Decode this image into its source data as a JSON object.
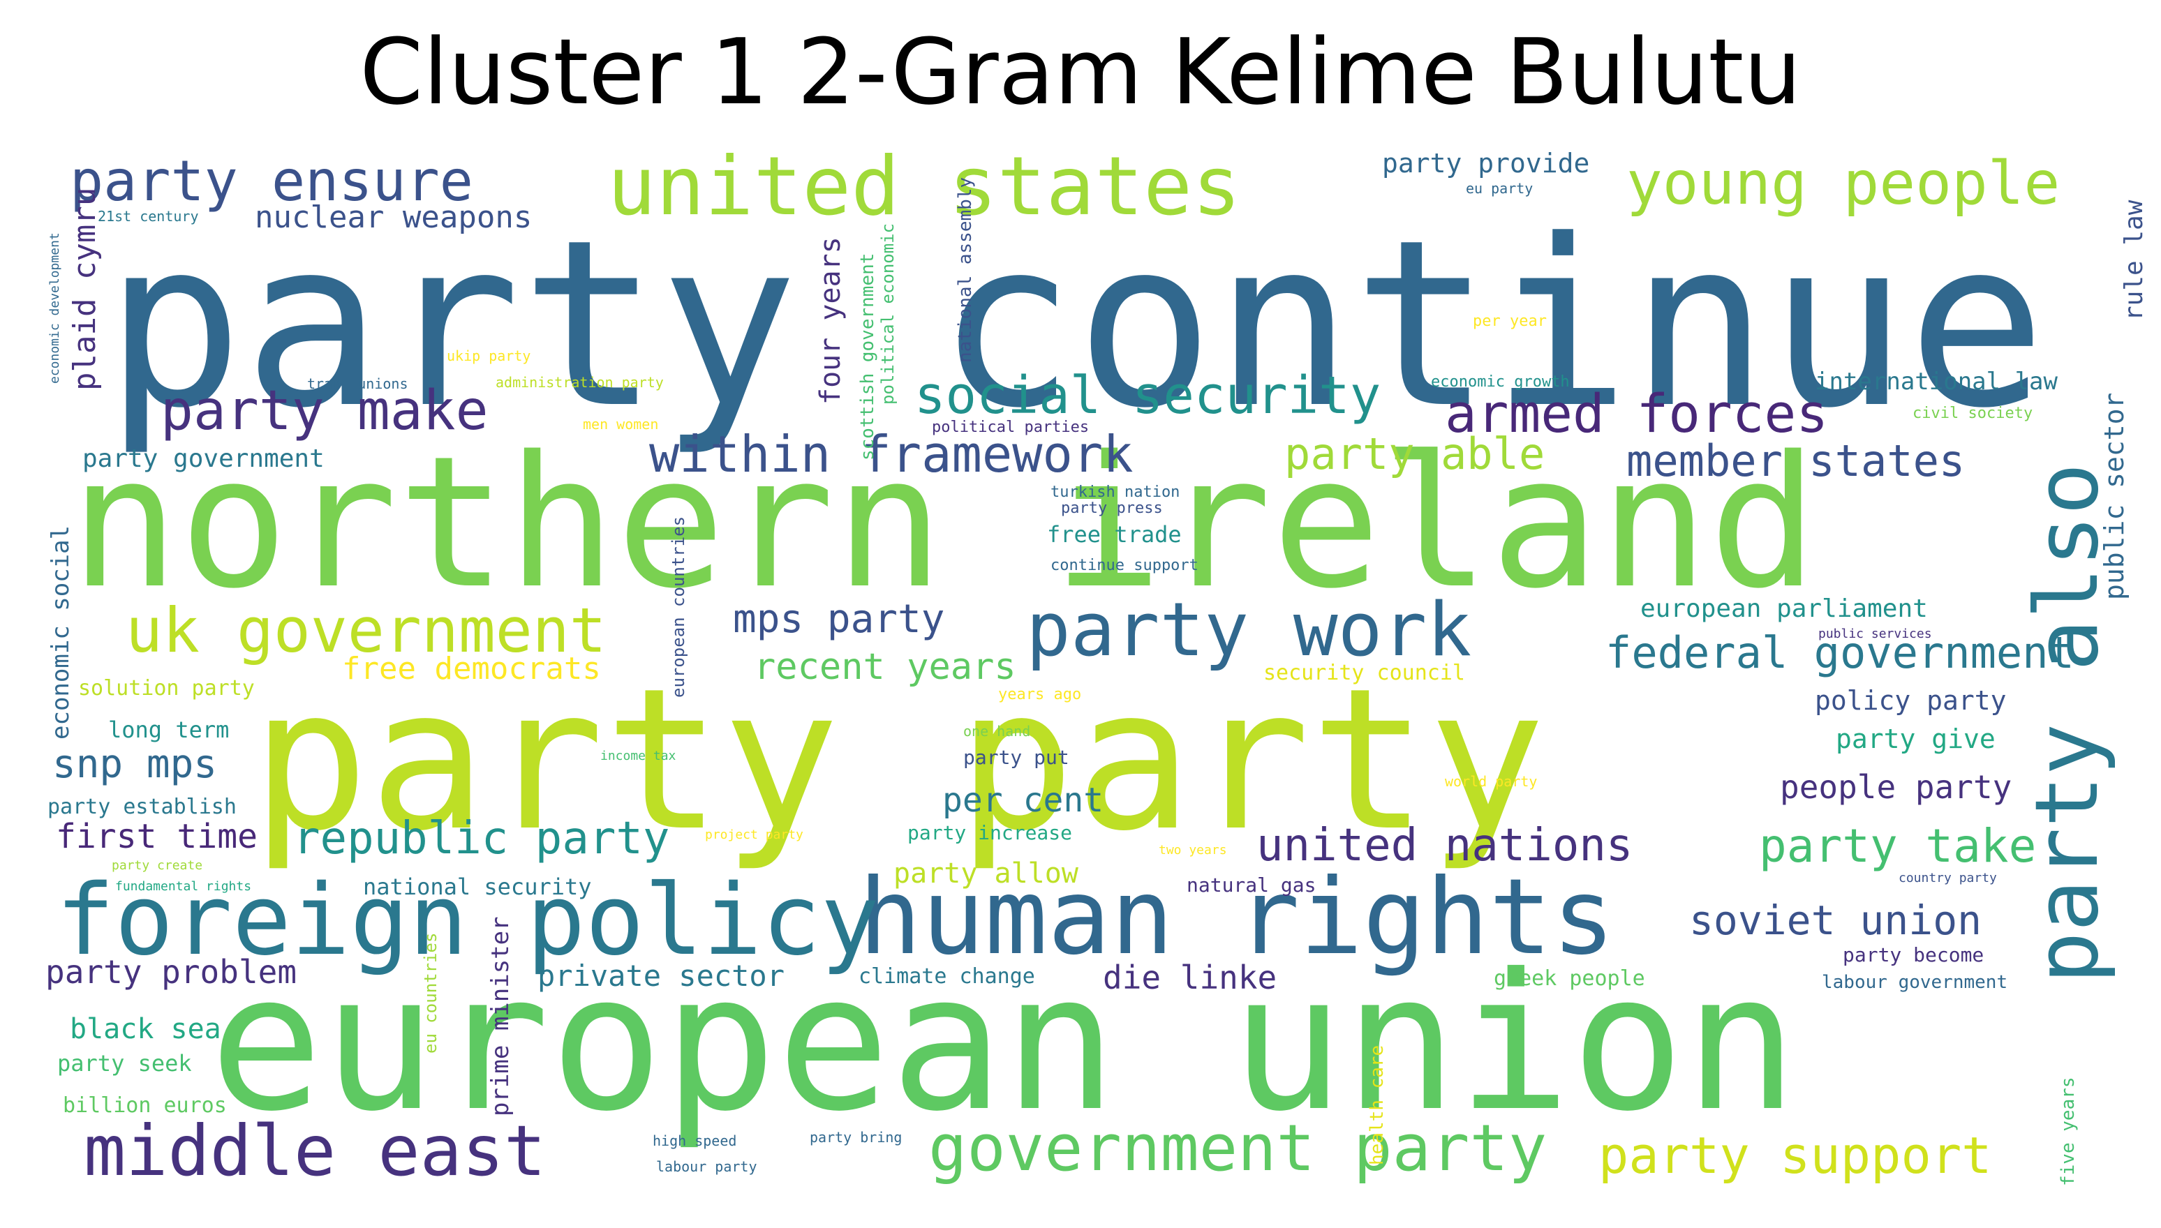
{
  "title": "Cluster 1 2-Gram Kelime Bulutu",
  "palette": {
    "c1": "#3b528b",
    "c2": "#31688e",
    "c3": "#2a788e",
    "c4": "#21918c",
    "c5": "#22a884",
    "c6": "#44bf70",
    "c7": "#5ec962",
    "c8": "#7ad151",
    "c9": "#a0da39",
    "c10": "#bddf26",
    "c11": "#d0e11c",
    "c12": "#482878",
    "c13": "#46327e",
    "c14": "#fde725",
    "c15": "#e5e419"
  },
  "words": [
    {
      "text": "party continue",
      "c": "c2"
    },
    {
      "text": "northern ireland",
      "c": "c8"
    },
    {
      "text": "party party",
      "c": "c10"
    },
    {
      "text": "european union",
      "c": "c7"
    },
    {
      "text": "human rights",
      "c": "c2"
    },
    {
      "text": "foreign policy",
      "c": "c3"
    },
    {
      "text": "united states",
      "c": "c9"
    },
    {
      "text": "party also",
      "c": "c3"
    },
    {
      "text": "middle east",
      "c": "c13"
    },
    {
      "text": "government party",
      "c": "c7"
    },
    {
      "text": "party work",
      "c": "c2"
    },
    {
      "text": "uk government",
      "c": "c10"
    },
    {
      "text": "young people",
      "c": "c9"
    },
    {
      "text": "party ensure",
      "c": "c1"
    },
    {
      "text": "party make",
      "c": "c13"
    },
    {
      "text": "armed forces",
      "c": "c12"
    },
    {
      "text": "social security",
      "c": "c4"
    },
    {
      "text": "within framework",
      "c": "c1"
    },
    {
      "text": "party support",
      "c": "c11"
    },
    {
      "text": "member states",
      "c": "c1"
    },
    {
      "text": "party able",
      "c": "c9"
    },
    {
      "text": "federal government",
      "c": "c3"
    },
    {
      "text": "republic party",
      "c": "c4"
    },
    {
      "text": "united nations",
      "c": "c13"
    },
    {
      "text": "party take",
      "c": "c6"
    },
    {
      "text": "soviet union",
      "c": "c1"
    },
    {
      "text": "mps party",
      "c": "c1"
    },
    {
      "text": "recent years",
      "c": "c7"
    },
    {
      "text": "snp mps",
      "c": "c2"
    },
    {
      "text": "nuclear weapons",
      "c": "c1"
    },
    {
      "text": "plaid cymru",
      "c": "c13"
    },
    {
      "text": "four years",
      "c": "c13"
    },
    {
      "text": "party provide",
      "c": "c2"
    },
    {
      "text": "public sector",
      "c": "c2"
    },
    {
      "text": "rule law",
      "c": "c1"
    },
    {
      "text": "international law",
      "c": "c3"
    },
    {
      "text": "party government",
      "c": "c3"
    },
    {
      "text": "european parliament",
      "c": "c4"
    },
    {
      "text": "first time",
      "c": "c12"
    },
    {
      "text": "free democrats",
      "c": "c14"
    },
    {
      "text": "per cent",
      "c": "c3"
    },
    {
      "text": "people party",
      "c": "c13"
    },
    {
      "text": "policy party",
      "c": "c1"
    },
    {
      "text": "party give",
      "c": "c5"
    },
    {
      "text": "party problem",
      "c": "c13"
    },
    {
      "text": "private sector",
      "c": "c3"
    },
    {
      "text": "die linke",
      "c": "c13"
    },
    {
      "text": "economic social",
      "c": "c2"
    },
    {
      "text": "party allow",
      "c": "c10"
    },
    {
      "text": "black sea",
      "c": "c5"
    },
    {
      "text": "prime minister",
      "c": "c13"
    },
    {
      "text": "long term",
      "c": "c4"
    },
    {
      "text": "party seek",
      "c": "c6"
    },
    {
      "text": "billion euros",
      "c": "c7"
    },
    {
      "text": "solution party",
      "c": "c10"
    },
    {
      "text": "party establish",
      "c": "c3"
    },
    {
      "text": "national security",
      "c": "c3"
    },
    {
      "text": "climate change",
      "c": "c3"
    },
    {
      "text": "security council",
      "c": "c15"
    },
    {
      "text": "free trade",
      "c": "c4"
    },
    {
      "text": "party increase",
      "c": "c5"
    },
    {
      "text": "party put",
      "c": "c1"
    },
    {
      "text": "natural gas",
      "c": "c13"
    },
    {
      "text": "greek people",
      "c": "c7"
    },
    {
      "text": "party become",
      "c": "c13"
    },
    {
      "text": "labour government",
      "c": "c2"
    },
    {
      "text": "scottish government",
      "c": "c6"
    },
    {
      "text": "national assembly",
      "c": "c1"
    },
    {
      "text": "political economic",
      "c": "c6"
    },
    {
      "text": "european countries",
      "c": "c1"
    },
    {
      "text": "eu countries",
      "c": "c9"
    },
    {
      "text": "health care",
      "c": "c15"
    },
    {
      "text": "five years",
      "c": "c6"
    },
    {
      "text": "civil society",
      "c": "c8"
    },
    {
      "text": "economic growth",
      "c": "c4"
    },
    {
      "text": "continue support",
      "c": "c2"
    },
    {
      "text": "turkish nation",
      "c": "c2"
    },
    {
      "text": "party press",
      "c": "c1"
    },
    {
      "text": "political parties",
      "c": "c13"
    },
    {
      "text": "eu party",
      "c": "c2"
    },
    {
      "text": "per year",
      "c": "c14"
    },
    {
      "text": "21st century",
      "c": "c3"
    },
    {
      "text": "economic development",
      "c": "c2"
    },
    {
      "text": "ukip party",
      "c": "c14"
    },
    {
      "text": "trade unions",
      "c": "c2"
    },
    {
      "text": "administration party",
      "c": "c10"
    },
    {
      "text": "men women",
      "c": "c14"
    },
    {
      "text": "public services",
      "c": "c13"
    },
    {
      "text": "years ago",
      "c": "c14"
    },
    {
      "text": "one hand",
      "c": "c8"
    },
    {
      "text": "income tax",
      "c": "c6"
    },
    {
      "text": "world party",
      "c": "c14"
    },
    {
      "text": "project party",
      "c": "c14"
    },
    {
      "text": "two years",
      "c": "c14"
    },
    {
      "text": "party create",
      "c": "c9"
    },
    {
      "text": "fundamental rights",
      "c": "c5"
    },
    {
      "text": "country party",
      "c": "c1"
    },
    {
      "text": "high speed",
      "c": "c2"
    },
    {
      "text": "labour party",
      "c": "c2"
    },
    {
      "text": "party bring",
      "c": "c2"
    }
  ]
}
